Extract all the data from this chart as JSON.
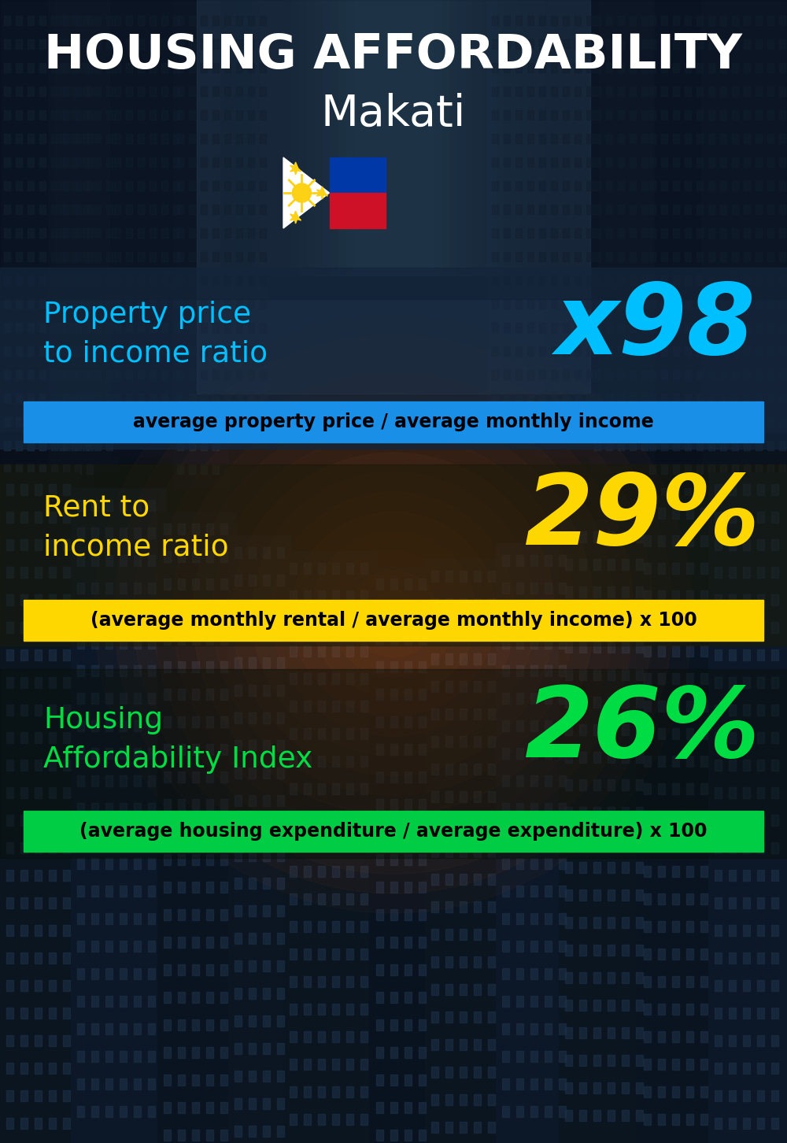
{
  "title_line1": "HOUSING AFFORDABILITY",
  "title_line2": "Makati",
  "bg_color": "#0d1520",
  "section1_label": "Property price\nto income ratio",
  "section1_value": "x98",
  "section1_label_color": "#00bfff",
  "section1_value_color": "#00bfff",
  "section1_banner_text": "average property price / average monthly income",
  "section1_banner_bg": "#1a8fe8",
  "section1_banner_text_color": "#000000",
  "section2_label": "Rent to\nincome ratio",
  "section2_value": "29%",
  "section2_label_color": "#ffd700",
  "section2_value_color": "#ffd700",
  "section2_banner_text": "(average monthly rental / average monthly income) x 100",
  "section2_banner_bg": "#ffd700",
  "section2_banner_text_color": "#000000",
  "section3_label": "Housing\nAffordability Index",
  "section3_value": "26%",
  "section3_label_color": "#00dd44",
  "section3_value_color": "#00dd44",
  "section3_banner_text": "(average housing expenditure / average expenditure) x 100",
  "section3_banner_bg": "#00cc44",
  "section3_banner_text_color": "#000000",
  "title_color": "#ffffff",
  "title_fontsize": 44,
  "subtitle_fontsize": 40,
  "label_fontsize": 27,
  "banner_fontsize": 17
}
